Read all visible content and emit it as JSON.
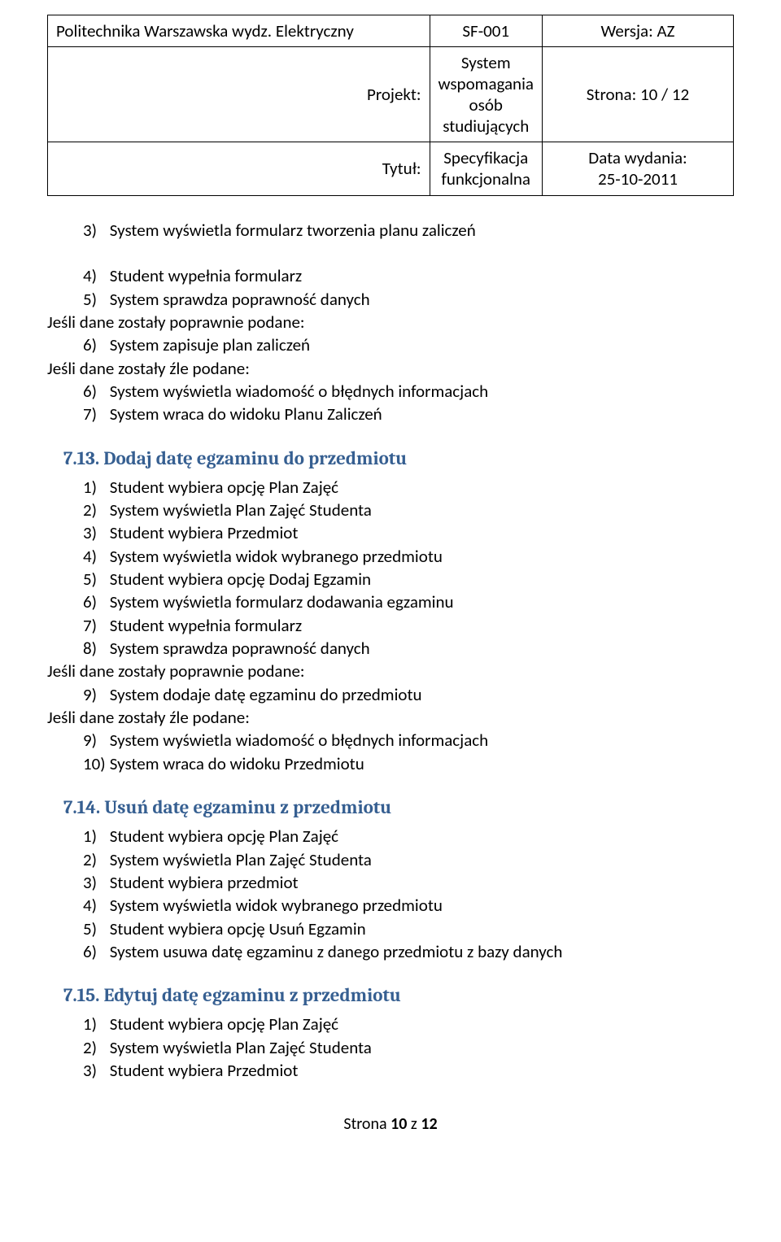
{
  "header": {
    "org": "Politechnika Warszawska wydz. Elektryczny",
    "code": "SF-001",
    "version": "Wersja: AZ",
    "project_label": "Projekt:",
    "project": "System wspomagania osób studiujących",
    "page": "Strona: 10 / 12",
    "title_label": "Tytuł:",
    "title": "Specyfikacja funkcjonalna",
    "date_label": "Data wydania:",
    "date": "25-10-2011"
  },
  "intro_lines": [
    {
      "indent": 1,
      "num": "3)",
      "text": "System wyświetla formularz tworzenia planu zaliczeń"
    },
    {
      "indent": 1,
      "num": "",
      "text": ""
    },
    {
      "indent": 1,
      "num": "4)",
      "text": "Student wypełnia formularz"
    },
    {
      "indent": 1,
      "num": "5)",
      "text": "System sprawdza poprawność danych"
    },
    {
      "indent": 0,
      "num": "",
      "text": "Jeśli dane zostały poprawnie podane:"
    },
    {
      "indent": 1,
      "num": "6)",
      "text": "System zapisuje plan zaliczeń"
    },
    {
      "indent": 0,
      "num": "",
      "text": "Jeśli dane zostały źle podane:"
    },
    {
      "indent": 1,
      "num": "6)",
      "text": "System wyświetla wiadomość o błędnych informacjach"
    },
    {
      "indent": 1,
      "num": "7)",
      "text": "System wraca do widoku Planu Zaliczeń"
    }
  ],
  "sections": [
    {
      "heading": "7.13. Dodaj datę egzaminu do przedmiotu",
      "lines": [
        {
          "indent": 1,
          "num": "1)",
          "text": "Student wybiera opcję Plan Zajęć"
        },
        {
          "indent": 1,
          "num": "2)",
          "text": "System wyświetla  Plan Zajęć Studenta"
        },
        {
          "indent": 1,
          "num": "3)",
          "text": "Student wybiera Przedmiot"
        },
        {
          "indent": 1,
          "num": "4)",
          "text": "System wyświetla widok wybranego przedmiotu"
        },
        {
          "indent": 1,
          "num": "5)",
          "text": "Student wybiera opcję Dodaj Egzamin"
        },
        {
          "indent": 1,
          "num": "6)",
          "text": "System wyświetla formularz dodawania egzaminu"
        },
        {
          "indent": 1,
          "num": "7)",
          "text": "Student wypełnia formularz"
        },
        {
          "indent": 1,
          "num": "8)",
          "text": "System sprawdza poprawność danych"
        },
        {
          "indent": 0,
          "num": "",
          "text": "Jeśli dane zostały poprawnie podane:"
        },
        {
          "indent": 1,
          "num": "9)",
          "text": "System dodaje datę egzaminu do przedmiotu"
        },
        {
          "indent": 0,
          "num": "",
          "text": "Jeśli dane zostały źle podane:"
        },
        {
          "indent": 1,
          "num": "9)",
          "text": "System wyświetla wiadomość o błędnych informacjach"
        },
        {
          "indent": 1,
          "num": "10)",
          "text": "System wraca do widoku Przedmiotu"
        }
      ]
    },
    {
      "heading": "7.14. Usuń datę egzaminu z przedmiotu",
      "lines": [
        {
          "indent": 1,
          "num": "1)",
          "text": "Student wybiera opcję Plan Zajęć"
        },
        {
          "indent": 1,
          "num": "2)",
          "text": "System wyświetla  Plan Zajęć Studenta"
        },
        {
          "indent": 1,
          "num": "3)",
          "text": "Student wybiera przedmiot"
        },
        {
          "indent": 1,
          "num": "4)",
          "text": "System wyświetla widok wybranego przedmiotu"
        },
        {
          "indent": 1,
          "num": "5)",
          "text": "Student wybiera opcję Usuń Egzamin"
        },
        {
          "indent": 1,
          "num": "6)",
          "text": "System usuwa datę egzaminu z danego przedmiotu z bazy danych"
        }
      ]
    },
    {
      "heading": "7.15. Edytuj datę egzaminu z przedmiotu",
      "lines": [
        {
          "indent": 1,
          "num": "1)",
          "text": "Student wybiera opcję Plan Zajęć"
        },
        {
          "indent": 1,
          "num": "2)",
          "text": "System wyświetla  Plan Zajęć Studenta"
        },
        {
          "indent": 1,
          "num": "3)",
          "text": "Student wybiera Przedmiot"
        }
      ]
    }
  ],
  "footer": {
    "prefix": "Strona ",
    "page_num": "10",
    "middle": " z ",
    "total": "12"
  },
  "colors": {
    "heading_color": "#365f91",
    "text_color": "#000000",
    "border_color": "#000000",
    "background": "#ffffff"
  }
}
